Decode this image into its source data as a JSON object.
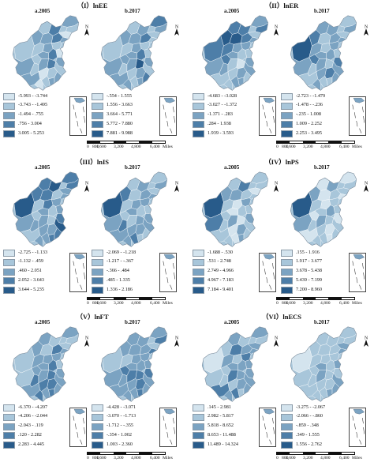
{
  "colors": {
    "c1": "#d4e4ee",
    "c2": "#a8c6da",
    "c3": "#7ba3c2",
    "c4": "#4d7ea8",
    "c5": "#285b8a"
  },
  "scale_labels": [
    "0",
    "800",
    "1,600",
    "3,200",
    "4,800",
    "6,400",
    "Miles"
  ],
  "panels": [
    {
      "title": "（I）lnEE",
      "map_a": "a.2005",
      "map_b": "b.2017",
      "legend_a": [
        "-5.993 - -3.744",
        "-3.743 - -1.495",
        "-1.494 - .755",
        ".756 - 3.004",
        "3.005 - 5.253"
      ],
      "legend_b": [
        "-.554 - 1.555",
        "1.556 - 3.663",
        "3.664 - 5.771",
        "5.772 - 7.880",
        "7.881 - 9.988"
      ],
      "levels_a": [
        2,
        3,
        2,
        4,
        3,
        2,
        1,
        3,
        4,
        3,
        3,
        2,
        3,
        2,
        1,
        2,
        3,
        4,
        3,
        2,
        3,
        4,
        2,
        3,
        1,
        2,
        3,
        2,
        1,
        3
      ],
      "levels_b": [
        2,
        3,
        2,
        3,
        4,
        3,
        2,
        3,
        4,
        2,
        3,
        2,
        3,
        2,
        2,
        3,
        3,
        4,
        3,
        2,
        3,
        5,
        2,
        3,
        2,
        3,
        4,
        2,
        3,
        3
      ]
    },
    {
      "title": "（II）lnER",
      "map_a": "a.2005",
      "map_b": "b.2017",
      "legend_a": [
        "-4.683 - -3.028",
        "-3.027 - -1.372",
        "-1.371 - .283",
        ".284 - 1.938",
        "1.939 - 3.593"
      ],
      "legend_b": [
        "-2.723 - -1.479",
        "-1.478 - -.236",
        "-.235 - 1.008",
        "1.009 - 2.252",
        "2.253 - 3.495"
      ],
      "levels_a": [
        4,
        5,
        4,
        4,
        3,
        4,
        2,
        5,
        4,
        3,
        3,
        4,
        3,
        3,
        2,
        4,
        3,
        2,
        3,
        3,
        2,
        1,
        3,
        2,
        2,
        3,
        2,
        3,
        2,
        3
      ],
      "levels_b": [
        5,
        4,
        3,
        3,
        2,
        3,
        2,
        2,
        3,
        3,
        3,
        3,
        2,
        3,
        2,
        4,
        3,
        3,
        4,
        2,
        3,
        2,
        3,
        2,
        3,
        4,
        3,
        2,
        3,
        2
      ]
    },
    {
      "title": "（III）lnIS",
      "map_a": "a.2005",
      "map_b": "b.2017",
      "legend_a": [
        "-2.725 - -1.133",
        "-1.132 - .459",
        ".460 - 2.051",
        "2.052 - 3.643",
        "3.644 - 5.235"
      ],
      "legend_b": [
        "-2.069 - -1.218",
        "-1.217 - -.367",
        "-.366 - .484",
        ".485 - 1.335",
        "1.336 - 2.186"
      ],
      "levels_a": [
        5,
        4,
        4,
        5,
        4,
        4,
        3,
        4,
        2,
        3,
        3,
        2,
        4,
        3,
        3,
        2,
        3,
        2,
        4,
        3,
        3,
        2,
        5,
        2,
        3,
        3,
        4,
        3,
        3,
        4
      ],
      "levels_b": [
        5,
        4,
        2,
        3,
        2,
        3,
        2,
        2,
        3,
        3,
        3,
        2,
        3,
        3,
        2,
        2,
        3,
        2,
        3,
        4,
        2,
        3,
        3,
        3,
        3,
        3,
        2,
        4,
        3,
        2
      ]
    },
    {
      "title": "（IV）lnPS",
      "map_a": "a.2005",
      "map_b": "b.2017",
      "legend_a": [
        "-1.688 - .530",
        ".531 - 2.748",
        "2.749 - 4.966",
        "4.967 - 7.183",
        "7.184 - 9.401"
      ],
      "legend_b": [
        ".155 - 1.916",
        "1.917 - 3.677",
        "3.678 - 5.438",
        "5.439 - 7.199",
        "7.200 - 8.960"
      ],
      "levels_a": [
        5,
        3,
        2,
        4,
        2,
        2,
        1,
        3,
        2,
        2,
        4,
        2,
        1,
        3,
        2,
        2,
        1,
        2,
        3,
        2,
        3,
        1,
        2,
        2,
        1,
        3,
        2,
        1,
        2,
        3
      ],
      "levels_b": [
        5,
        3,
        1,
        3,
        1,
        2,
        2,
        1,
        2,
        1,
        3,
        2,
        1,
        2,
        2,
        1,
        2,
        3,
        1,
        2,
        3,
        2,
        2,
        1,
        2,
        1,
        2,
        2,
        2,
        1
      ]
    },
    {
      "title": "（V）lnFT",
      "map_a": "a.2005",
      "map_b": "b.2017",
      "legend_a": [
        "-6.370 - -4.207",
        "-4.206 - -2.044",
        "-2.043 - .119",
        ".120 - 2.282",
        "2.283 - 4.445"
      ],
      "legend_b": [
        "-4.428 - -3.071",
        "-3.070 - -1.713",
        "-1.712 - -.355",
        "-.354 - 1.002",
        "1.003 - 2.360"
      ],
      "levels_a": [
        2,
        3,
        3,
        2,
        3,
        2,
        2,
        2,
        4,
        3,
        2,
        3,
        3,
        3,
        2,
        3,
        3,
        4,
        3,
        4,
        3,
        4,
        3,
        3,
        4,
        4,
        3,
        3,
        4,
        4
      ],
      "levels_b": [
        2,
        3,
        3,
        3,
        3,
        4,
        2,
        3,
        3,
        4,
        3,
        2,
        3,
        3,
        3,
        4,
        3,
        3,
        4,
        3,
        4,
        4,
        3,
        3,
        3,
        4,
        3,
        3,
        3,
        4
      ]
    },
    {
      "title": "（VI）lnECS",
      "map_a": "a.2005",
      "map_b": "b.2017",
      "legend_a": [
        ".145 - 2.981",
        "2.982 - 5.817",
        "5.818 - 8.652",
        "8.653 - 11.488",
        "11.489 - 14.324"
      ],
      "legend_b": [
        "-3.275 - -2.067",
        "-2.066 - -.860",
        "-.859 - .348",
        ".349 - 1.555",
        "1.556 - 2.762"
      ],
      "levels_a": [
        1,
        2,
        3,
        2,
        3,
        2,
        3,
        4,
        3,
        3,
        2,
        3,
        2,
        4,
        3,
        2,
        3,
        3,
        3,
        2,
        4,
        3,
        3,
        4,
        2,
        3,
        3,
        4,
        3,
        2
      ],
      "levels_b": [
        1,
        2,
        2,
        2,
        2,
        2,
        3,
        2,
        2,
        3,
        2,
        2,
        2,
        2,
        3,
        2,
        3,
        2,
        2,
        2,
        3,
        2,
        3,
        2,
        2,
        2,
        3,
        2,
        2,
        3
      ]
    }
  ]
}
